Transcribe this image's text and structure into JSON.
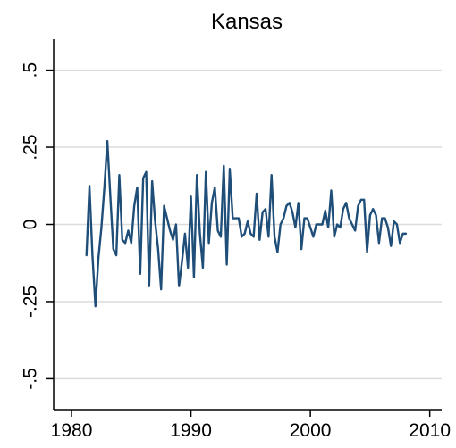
{
  "chart_data": {
    "type": "line",
    "title": "Kansas",
    "xlabel": "",
    "ylabel": "",
    "xlim": [
      1978.5,
      2011
    ],
    "ylim": [
      -0.6,
      0.6
    ],
    "grid": true,
    "x_ticks": [
      1980,
      1990,
      2000,
      2010
    ],
    "x_tick_labels": [
      "1980",
      "1990",
      "2000",
      "2010"
    ],
    "y_ticks": [
      0.5,
      0.25,
      0,
      -0.25,
      -0.5
    ],
    "y_tick_labels": [
      ".5",
      ".25",
      "0",
      "-.25",
      "-.5"
    ],
    "colors": {
      "series": "#1f4e79",
      "grid": "#dcdcdc",
      "axis": "#000000"
    },
    "series": [
      {
        "x": [
          1981.25,
          1981.5,
          1981.75,
          1982.0,
          1982.25,
          1982.5,
          1982.75,
          1983.0,
          1983.25,
          1983.5,
          1983.75,
          1984.0,
          1984.25,
          1984.5,
          1984.75,
          1985.0,
          1985.25,
          1985.5,
          1985.75,
          1986.0,
          1986.25,
          1986.5,
          1986.75,
          1987.0,
          1987.25,
          1987.5,
          1987.75,
          1988.0,
          1988.25,
          1988.5,
          1988.75,
          1989.0,
          1989.25,
          1989.5,
          1989.75,
          1990.0,
          1990.25,
          1990.5,
          1990.75,
          1991.0,
          1991.25,
          1991.5,
          1991.75,
          1992.0,
          1992.25,
          1992.5,
          1992.75,
          1993.0,
          1993.25,
          1993.5,
          1993.75,
          1994.0,
          1994.25,
          1994.5,
          1994.75,
          1995.0,
          1995.25,
          1995.5,
          1995.75,
          1996.0,
          1996.25,
          1996.5,
          1996.75,
          1997.0,
          1997.25,
          1997.5,
          1997.75,
          1998.0,
          1998.25,
          1998.5,
          1998.75,
          1999.0,
          1999.25,
          1999.5,
          1999.75,
          2000.0,
          2000.25,
          2000.5,
          2000.75,
          2001.0,
          2001.25,
          2001.5,
          2001.75,
          2002.0,
          2002.25,
          2002.5,
          2002.75,
          2003.0,
          2003.25,
          2003.5,
          2003.75,
          2004.0,
          2004.25,
          2004.5,
          2004.75,
          2005.0,
          2005.25,
          2005.5,
          2005.75,
          2006.0,
          2006.25,
          2006.5,
          2006.75,
          2007.0,
          2007.25,
          2007.5,
          2007.75,
          2008.0
        ],
        "y": [
          -0.1,
          0.125,
          -0.1,
          -0.265,
          -0.11,
          -0.01,
          0.12,
          0.27,
          0.09,
          -0.08,
          -0.1,
          0.16,
          -0.05,
          -0.06,
          -0.02,
          -0.06,
          0.06,
          0.12,
          -0.16,
          0.15,
          0.17,
          -0.2,
          0.14,
          0.01,
          -0.08,
          -0.21,
          0.06,
          0.02,
          -0.02,
          -0.05,
          0.0,
          -0.2,
          -0.12,
          -0.03,
          -0.14,
          0.09,
          -0.17,
          0.16,
          -0.03,
          -0.14,
          0.17,
          -0.06,
          0.07,
          0.12,
          -0.02,
          -0.04,
          0.19,
          -0.13,
          0.18,
          0.02,
          0.02,
          0.02,
          -0.04,
          -0.03,
          0.01,
          -0.03,
          -0.04,
          0.1,
          -0.05,
          0.04,
          0.05,
          -0.04,
          0.16,
          -0.04,
          -0.09,
          0.0,
          0.02,
          0.06,
          0.07,
          0.04,
          -0.01,
          0.07,
          -0.08,
          0.02,
          0.02,
          -0.01,
          -0.04,
          0.0,
          0.0,
          0.0,
          0.045,
          -0.01,
          0.11,
          -0.04,
          0.0,
          -0.01,
          0.05,
          0.07,
          0.02,
          0.0,
          -0.02,
          0.06,
          0.08,
          0.08,
          -0.09,
          0.03,
          0.05,
          0.03,
          -0.06,
          0.02,
          0.02,
          -0.01,
          -0.07,
          0.01,
          0.0,
          -0.06,
          -0.03,
          -0.03
        ]
      }
    ]
  }
}
